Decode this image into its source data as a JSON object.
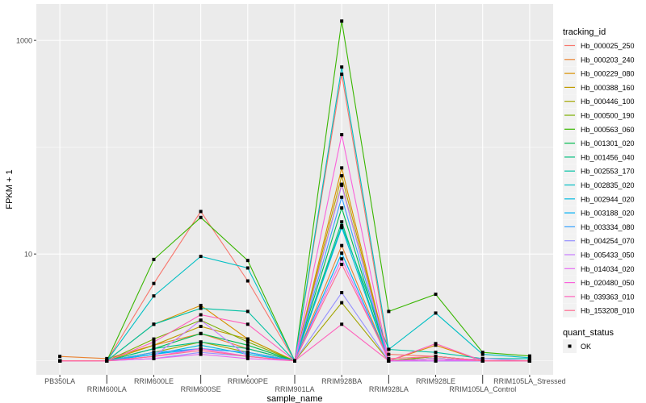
{
  "chart_data": {
    "type": "line",
    "title": "",
    "xlabel": "sample_name",
    "ylabel": "FPKM + 1",
    "yscale": "log10",
    "ylim": [
      0.74,
      2190
    ],
    "yticks": [
      10,
      1000
    ],
    "ytick_labels": [
      "10",
      "1000"
    ],
    "minor_gridlines": [
      1,
      100
    ],
    "grid": true,
    "background": "#EBEBEB",
    "categories": [
      "PB350LA",
      "RRIM600LA",
      "RRIM600LE",
      "RRIM600SE",
      "RRIM600PE",
      "RRIM901LA",
      "RRIM928BA",
      "RRIM928LA",
      "RRIM928LE",
      "RRIM105LA_Control",
      "RRIM105LA_Stressed"
    ],
    "legend": {
      "title": "tracking_id",
      "placement": "right"
    },
    "legend2": {
      "title": "quant_status",
      "entries": [
        "OK"
      ]
    },
    "point_color": "#000000",
    "series": [
      {
        "name": "Hb_000025_250",
        "color": "#F8766D",
        "values": [
          1,
          1,
          5.3,
          25,
          5.6,
          1,
          482,
          1.15,
          1.1,
          1,
          1
        ]
      },
      {
        "name": "Hb_000203_240",
        "color": "#EA8331",
        "values": [
          1.1,
          1.05,
          1.4,
          1.8,
          1.3,
          1,
          12,
          1,
          1.05,
          1,
          1
        ]
      },
      {
        "name": "Hb_000229_080",
        "color": "#D89000",
        "values": [
          1,
          1,
          2.2,
          3.3,
          1.6,
          1,
          64,
          1,
          1.4,
          1,
          1
        ]
      },
      {
        "name": "Hb_000388_160",
        "color": "#C09B00",
        "values": [
          1,
          1,
          1.4,
          2.1,
          1.6,
          1,
          54,
          1,
          1.1,
          1,
          1
        ]
      },
      {
        "name": "Hb_000446_100",
        "color": "#A3A500",
        "values": [
          1,
          1,
          1.2,
          1.5,
          1.2,
          1,
          3.5,
          1,
          1,
          1,
          1
        ]
      },
      {
        "name": "Hb_000500_190",
        "color": "#7CAE00",
        "values": [
          1,
          1,
          1.6,
          2.4,
          1.5,
          1,
          45,
          1,
          1.1,
          1,
          1
        ]
      },
      {
        "name": "Hb_000563_060",
        "color": "#39B600",
        "values": [
          1,
          1,
          8.9,
          22,
          8.7,
          1,
          1517,
          2.9,
          4.2,
          1.2,
          1.11
        ]
      },
      {
        "name": "Hb_001301_020",
        "color": "#00BB4E",
        "values": [
          1,
          1,
          1.3,
          1.8,
          1.4,
          1,
          27,
          1,
          1.05,
          1,
          1
        ]
      },
      {
        "name": "Hb_001456_040",
        "color": "#00BF7D",
        "values": [
          1,
          1,
          1.3,
          1.5,
          1.3,
          1,
          20,
          1,
          1.05,
          1,
          1
        ]
      },
      {
        "name": "Hb_002553_170",
        "color": "#00C1A3",
        "values": [
          1,
          1,
          2.2,
          3.1,
          2.9,
          1,
          18.4,
          1.28,
          1.2,
          1.05,
          1.05
        ]
      },
      {
        "name": "Hb_002835_020",
        "color": "#00BFC4",
        "values": [
          1,
          1,
          4.05,
          9.5,
          7.4,
          1,
          563,
          1.28,
          2.8,
          1.15,
          1.07
        ]
      },
      {
        "name": "Hb_002944_020",
        "color": "#00BAE0",
        "values": [
          1,
          1,
          1.15,
          1.4,
          1.15,
          1,
          17.7,
          1,
          1,
          1,
          1
        ]
      },
      {
        "name": "Hb_003188_020",
        "color": "#00B0F6",
        "values": [
          1,
          1,
          1.15,
          1.3,
          1.2,
          1,
          10.2,
          1,
          1.05,
          1,
          1
        ]
      },
      {
        "name": "Hb_003334_080",
        "color": "#35A2FF",
        "values": [
          1,
          1,
          1.2,
          1.3,
          1.2,
          1,
          34,
          1,
          1,
          1,
          1
        ]
      },
      {
        "name": "Hb_004254_070",
        "color": "#9590FF",
        "values": [
          1,
          1,
          1.05,
          1.2,
          1.1,
          1,
          4.35,
          1,
          1,
          1,
          1
        ]
      },
      {
        "name": "Hb_005433_050",
        "color": "#C77CFF",
        "values": [
          1,
          1,
          1.1,
          2.4,
          1.1,
          1,
          44,
          1,
          1,
          1.05,
          1
        ]
      },
      {
        "name": "Hb_014034_020",
        "color": "#E76BF3",
        "values": [
          1,
          1,
          1.05,
          1.15,
          1.05,
          1,
          9,
          1,
          1,
          1,
          1
        ]
      },
      {
        "name": "Hb_020480_050",
        "color": "#FA62DB",
        "values": [
          1,
          1,
          1.1,
          1.3,
          1.1,
          1,
          131,
          1,
          1.05,
          1,
          1
        ]
      },
      {
        "name": "Hb_039363_010",
        "color": "#FF62BC",
        "values": [
          1,
          1,
          1.5,
          2.7,
          2.2,
          1,
          2.2,
          1,
          1.45,
          1,
          1
        ]
      },
      {
        "name": "Hb_153208_010",
        "color": "#FF6C91",
        "values": [
          1,
          1,
          1.1,
          1.25,
          1.1,
          1,
          8,
          1.05,
          1.1,
          1,
          1
        ]
      }
    ]
  }
}
